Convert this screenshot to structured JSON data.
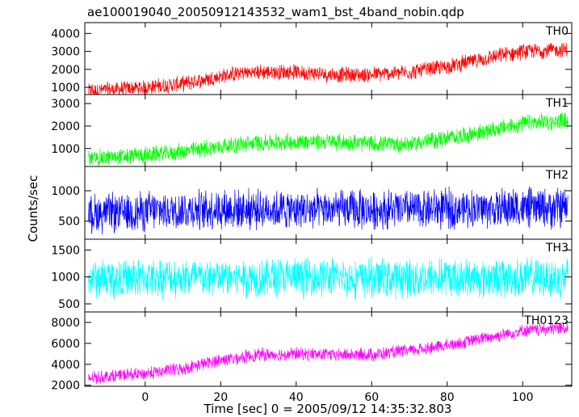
{
  "chart_data": {
    "type": "line",
    "title": "ae100019040_20050912143532_wam1_bst_4band_nobin.qdp",
    "xlabel": "Time [sec] 0 = 2005/09/12 14:35:32.803",
    "ylabel": "Counts/sec",
    "xlim": [
      -16,
      113
    ],
    "xticks": [
      0,
      20,
      40,
      60,
      80,
      100
    ],
    "grid": false,
    "panels": [
      {
        "name": "TH0",
        "color": "#ff0000",
        "ylim": [
          600,
          4600
        ],
        "yticks": [
          1000,
          2000,
          3000,
          4000
        ],
        "trend_x": [
          -15,
          0,
          10,
          20,
          25,
          30,
          40,
          50,
          60,
          70,
          80,
          90,
          100,
          112
        ],
        "trend_y": [
          800,
          1000,
          1200,
          1600,
          1800,
          1850,
          1850,
          1700,
          1700,
          1850,
          2150,
          2600,
          3000,
          3100
        ],
        "spread": 450
      },
      {
        "name": "TH1",
        "color": "#00ff00",
        "ylim": [
          200,
          3400
        ],
        "yticks": [
          1000,
          2000,
          3000
        ],
        "trend_x": [
          -15,
          0,
          10,
          20,
          30,
          40,
          50,
          60,
          70,
          80,
          90,
          100,
          112
        ],
        "trend_y": [
          550,
          700,
          850,
          1100,
          1250,
          1300,
          1300,
          1200,
          1200,
          1450,
          1750,
          2100,
          2250
        ],
        "spread": 400
      },
      {
        "name": "TH2",
        "color": "#0000ff",
        "ylim": [
          200,
          1400
        ],
        "yticks": [
          500,
          1000
        ],
        "trend_x": [
          -15,
          0,
          20,
          40,
          60,
          80,
          100,
          112
        ],
        "trend_y": [
          620,
          660,
          700,
          690,
          680,
          700,
          710,
          720
        ],
        "spread": 340
      },
      {
        "name": "TH3",
        "color": "#00ffff",
        "ylim": [
          350,
          1700
        ],
        "yticks": [
          500,
          1000,
          1500
        ],
        "trend_x": [
          -15,
          0,
          20,
          40,
          60,
          80,
          100,
          112
        ],
        "trend_y": [
          960,
          980,
          990,
          990,
          980,
          985,
          990,
          985
        ],
        "spread": 380
      },
      {
        "name": "TH0123",
        "color": "#ff00ff",
        "ylim": [
          1900,
          9000
        ],
        "yticks": [
          2000,
          4000,
          6000,
          8000
        ],
        "trend_x": [
          -15,
          0,
          10,
          20,
          30,
          40,
          50,
          60,
          70,
          80,
          90,
          100,
          112
        ],
        "trend_y": [
          2700,
          3100,
          3600,
          4400,
          4900,
          5000,
          4900,
          4900,
          5300,
          5800,
          6500,
          7200,
          7500
        ],
        "spread": 650
      }
    ]
  }
}
